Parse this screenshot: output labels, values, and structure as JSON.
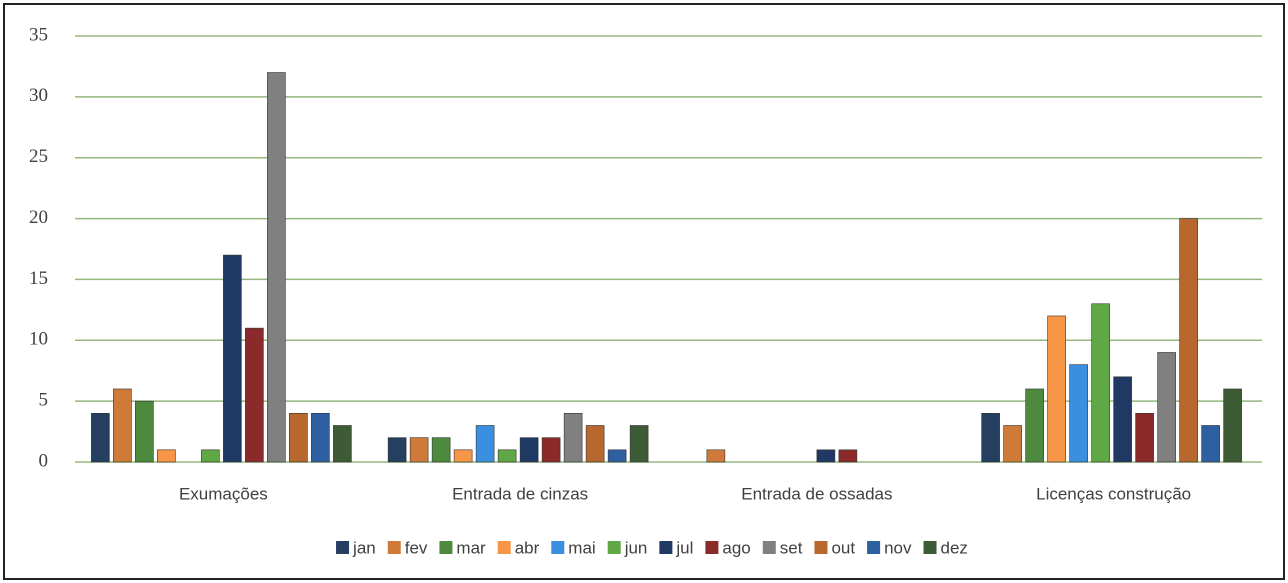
{
  "chart_data": {
    "type": "bar",
    "categories": [
      "Exumações",
      "Entrada de cinzas",
      "Entrada de ossadas",
      "Licenças construção"
    ],
    "series": [
      {
        "name": "jan",
        "color": "#243f60",
        "values": [
          4,
          2,
          0,
          4
        ]
      },
      {
        "name": "fev",
        "color": "#d07a3a",
        "values": [
          6,
          2,
          1,
          3
        ]
      },
      {
        "name": "mar",
        "color": "#4e8a3e",
        "values": [
          5,
          2,
          0,
          6
        ]
      },
      {
        "name": "abr",
        "color": "#f79646",
        "values": [
          1,
          1,
          0,
          12
        ]
      },
      {
        "name": "mai",
        "color": "#3a8fe0",
        "values": [
          0,
          3,
          0,
          8
        ]
      },
      {
        "name": "jun",
        "color": "#5fa845",
        "values": [
          1,
          1,
          0,
          13
        ]
      },
      {
        "name": "jul",
        "color": "#1f3864",
        "values": [
          17,
          2,
          1,
          7
        ]
      },
      {
        "name": "ago",
        "color": "#8b2a2a",
        "values": [
          11,
          2,
          1,
          4
        ]
      },
      {
        "name": "set",
        "color": "#808080",
        "values": [
          32,
          4,
          0,
          9
        ]
      },
      {
        "name": "out",
        "color": "#b8672e",
        "values": [
          4,
          3,
          0,
          20
        ]
      },
      {
        "name": "nov",
        "color": "#2e5fa0",
        "values": [
          4,
          1,
          0,
          3
        ]
      },
      {
        "name": "dez",
        "color": "#3d5c35",
        "values": [
          3,
          3,
          0,
          6
        ]
      }
    ],
    "ylim": [
      0,
      35
    ],
    "yticks": [
      0,
      5,
      10,
      15,
      20,
      25,
      30,
      35
    ],
    "grid": true,
    "legend": "bottom"
  }
}
